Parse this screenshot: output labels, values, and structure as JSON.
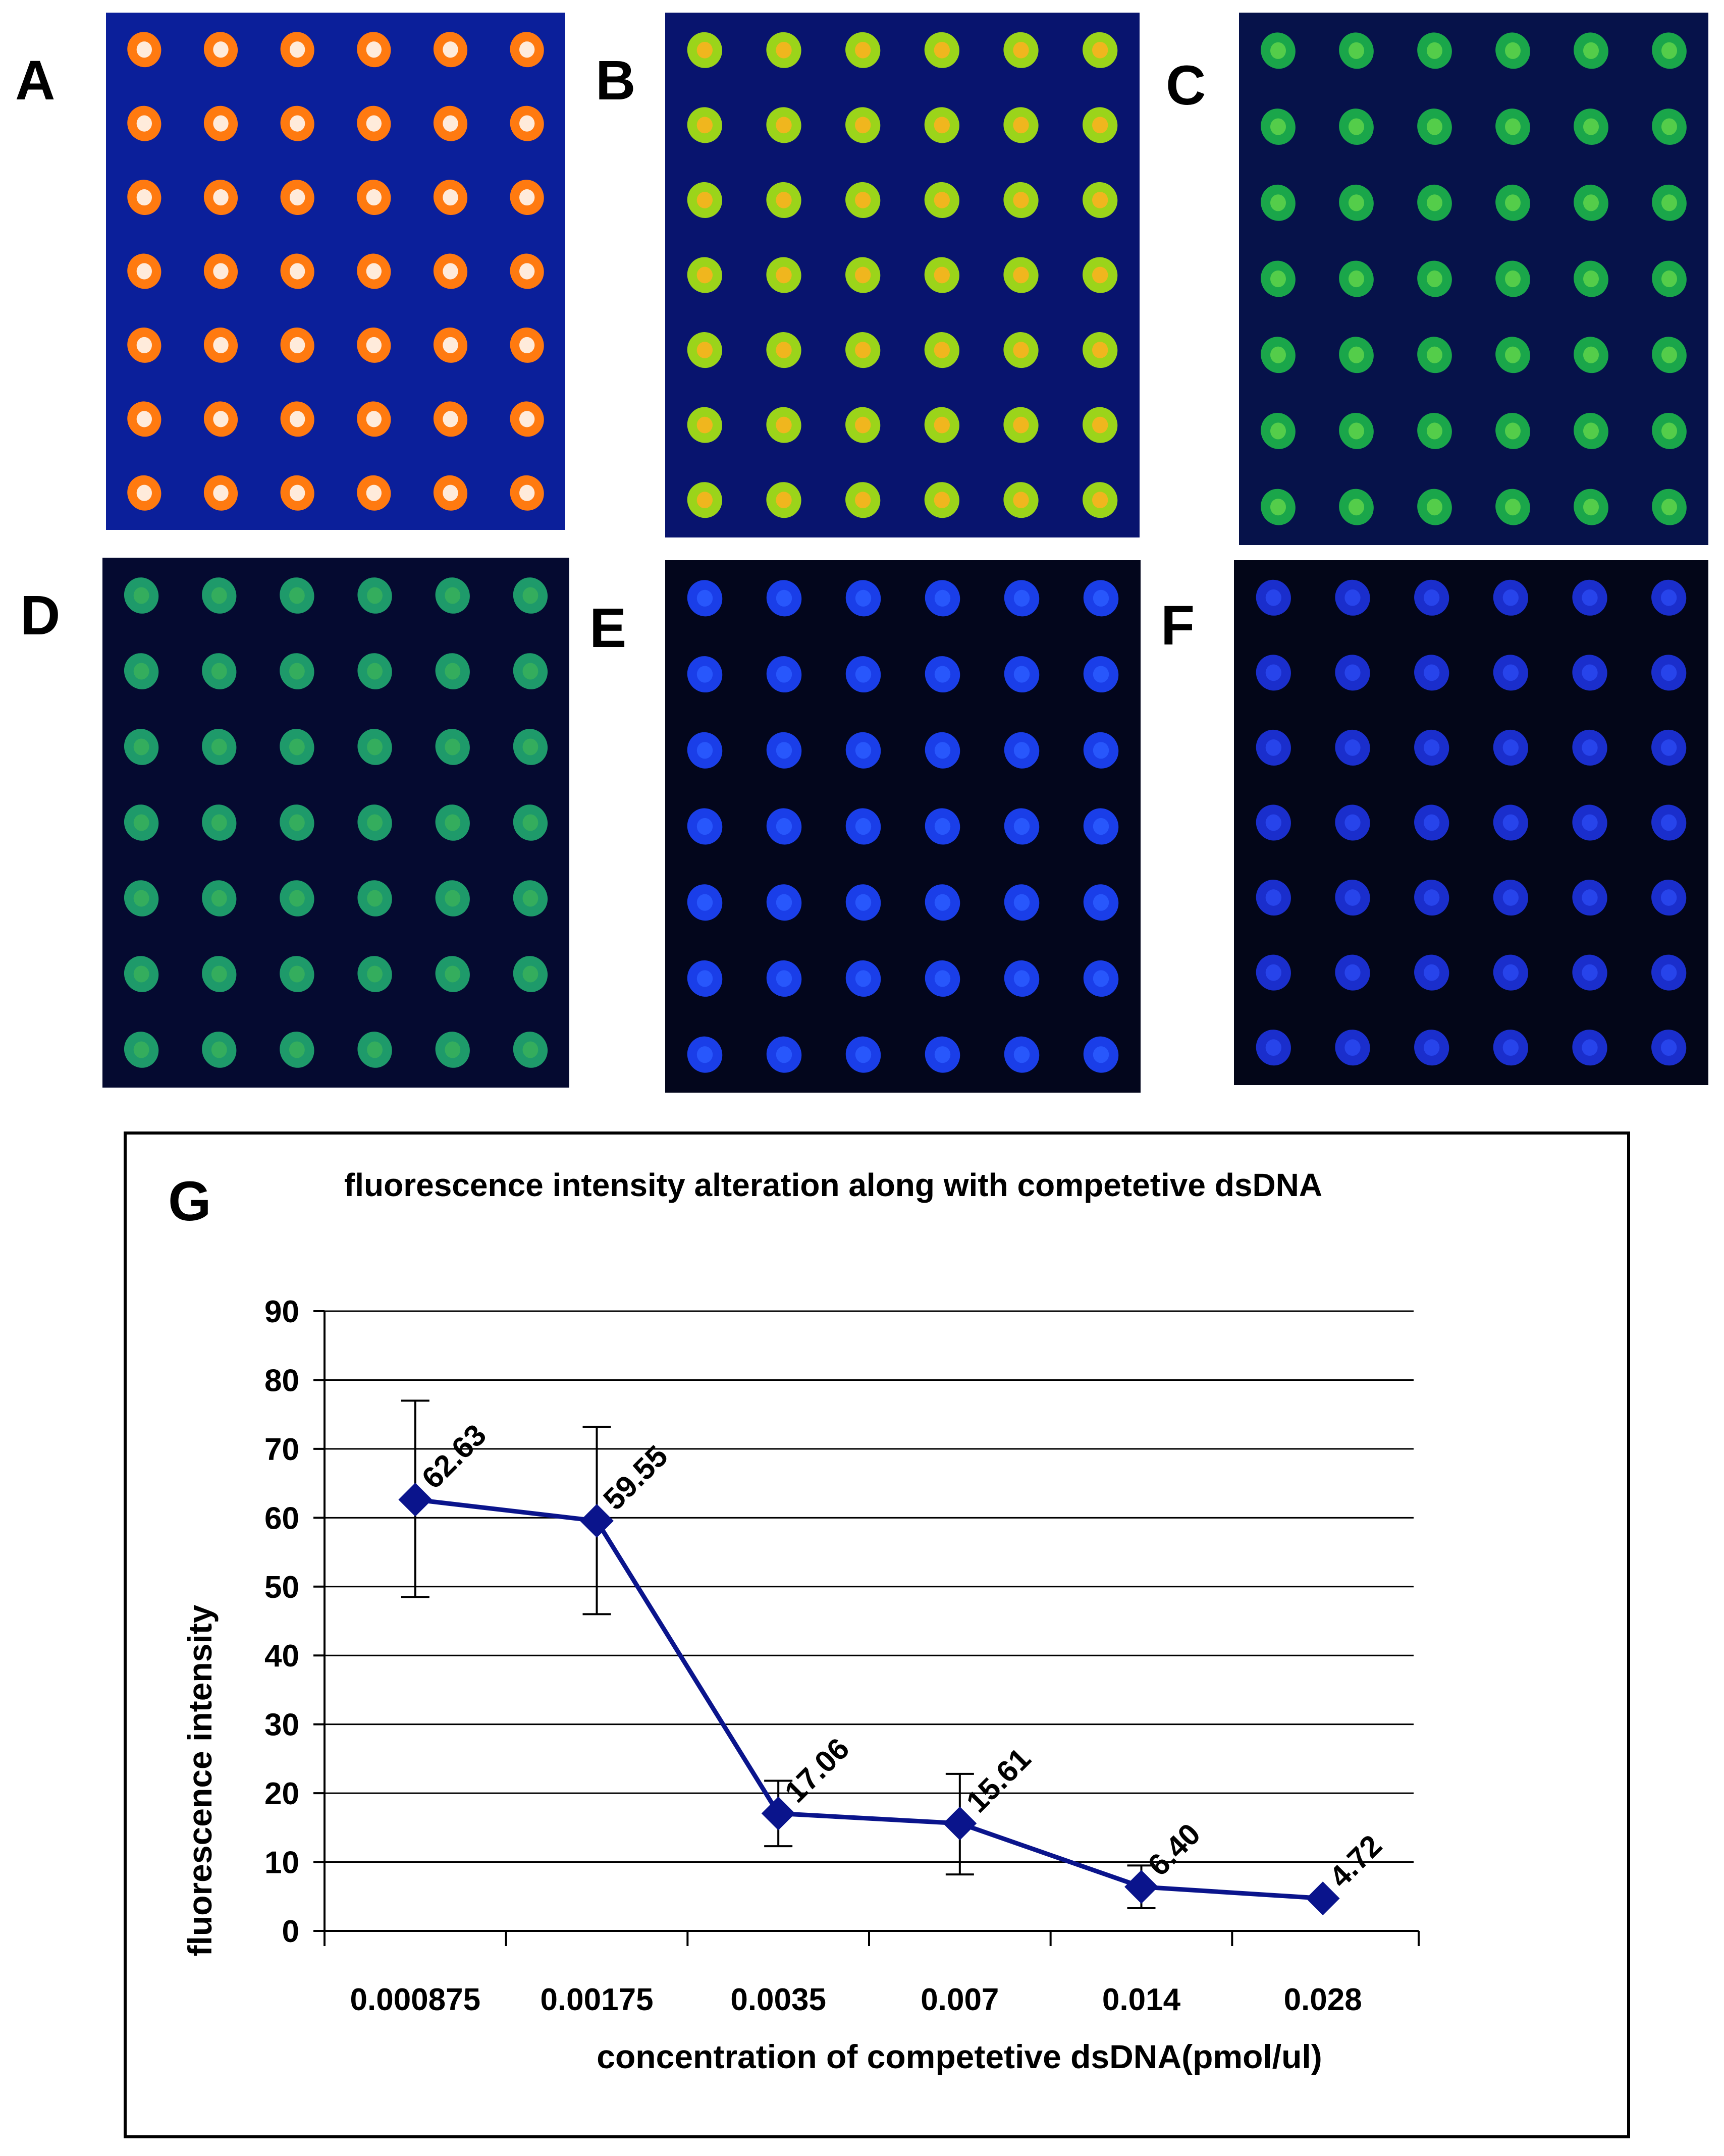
{
  "panels": [
    {
      "label": "A",
      "spot_color": "#ff7a10",
      "core_color": "#ffffff",
      "bg": "#0b1f9a"
    },
    {
      "label": "B",
      "spot_color": "#9bd41a",
      "core_color": "#ffb020",
      "bg": "#08146e"
    },
    {
      "label": "C",
      "spot_color": "#1aa64a",
      "core_color": "#5fd44a",
      "bg": "#06124a"
    },
    {
      "label": "D",
      "spot_color": "#1e9a6a",
      "core_color": "#38b05a",
      "bg": "#050a30"
    },
    {
      "label": "E",
      "spot_color": "#1a3ee8",
      "core_color": "#2b5cff",
      "bg": "#03061c"
    },
    {
      "label": "F",
      "spot_color": "#1a2ecc",
      "core_color": "#2a48f0",
      "bg": "#030618"
    }
  ],
  "chart_label": "G",
  "chart_data": {
    "type": "line",
    "title": "fluorescence intensity alteration along with competetive dsDNA",
    "xlabel": "concentration of competetive dsDNA(pmol/ul)",
    "ylabel": "fluorescence intensity",
    "categories": [
      "0.000875",
      "0.00175",
      "0.0035",
      "0.007",
      "0.014",
      "0.028"
    ],
    "series": [
      {
        "name": "fluorescence intensity",
        "values": [
          62.63,
          59.55,
          17.06,
          15.61,
          6.4,
          4.72
        ],
        "data_labels": [
          "62.63",
          "59.55",
          "17.06",
          "15.61",
          "6.40",
          "4.72"
        ],
        "error_low": [
          48.5,
          46.0,
          12.3,
          8.2,
          3.3,
          4.72
        ],
        "error_high": [
          77.0,
          73.2,
          21.8,
          22.8,
          9.5,
          4.72
        ],
        "color": "#0a148c"
      }
    ],
    "ylim": [
      0,
      90
    ],
    "yticks": [
      0,
      10,
      20,
      30,
      40,
      50,
      60,
      70,
      80,
      90
    ],
    "grid": true
  }
}
